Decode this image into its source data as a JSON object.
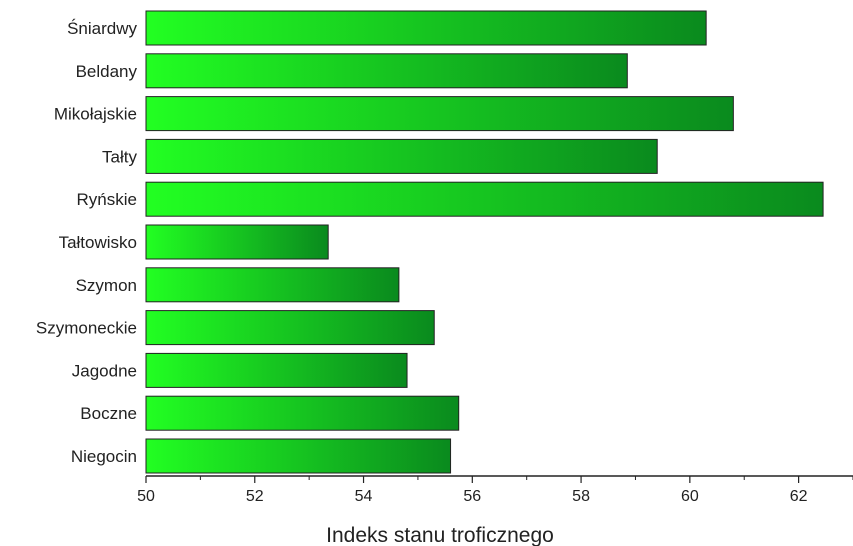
{
  "chart_data": {
    "type": "bar",
    "orientation": "horizontal",
    "categories": [
      "Śniardwy",
      "Beldany",
      "Mikołajskie",
      "Tałty",
      "Ryńskie",
      "Tałtowisko",
      "Szymon",
      "Szymoneckie",
      "Jagodne",
      "Boczne",
      "Niegocin"
    ],
    "values": [
      60.3,
      58.85,
      60.8,
      59.4,
      62.45,
      53.35,
      54.65,
      55.3,
      54.8,
      55.75,
      55.6
    ],
    "title": "",
    "xlabel": "Indeks stanu troficznego",
    "ylabel": "",
    "xlim": [
      50,
      63
    ],
    "xticks": [
      50,
      52,
      54,
      56,
      58,
      60,
      62
    ],
    "xtick_labels": [
      "50",
      "52",
      "54",
      "56",
      "58",
      "60",
      "62"
    ],
    "grid": false,
    "legend": "none",
    "bar_gradient": [
      "#22ff22",
      "#0a8a1e"
    ],
    "bar_edge_color": "#222222"
  }
}
